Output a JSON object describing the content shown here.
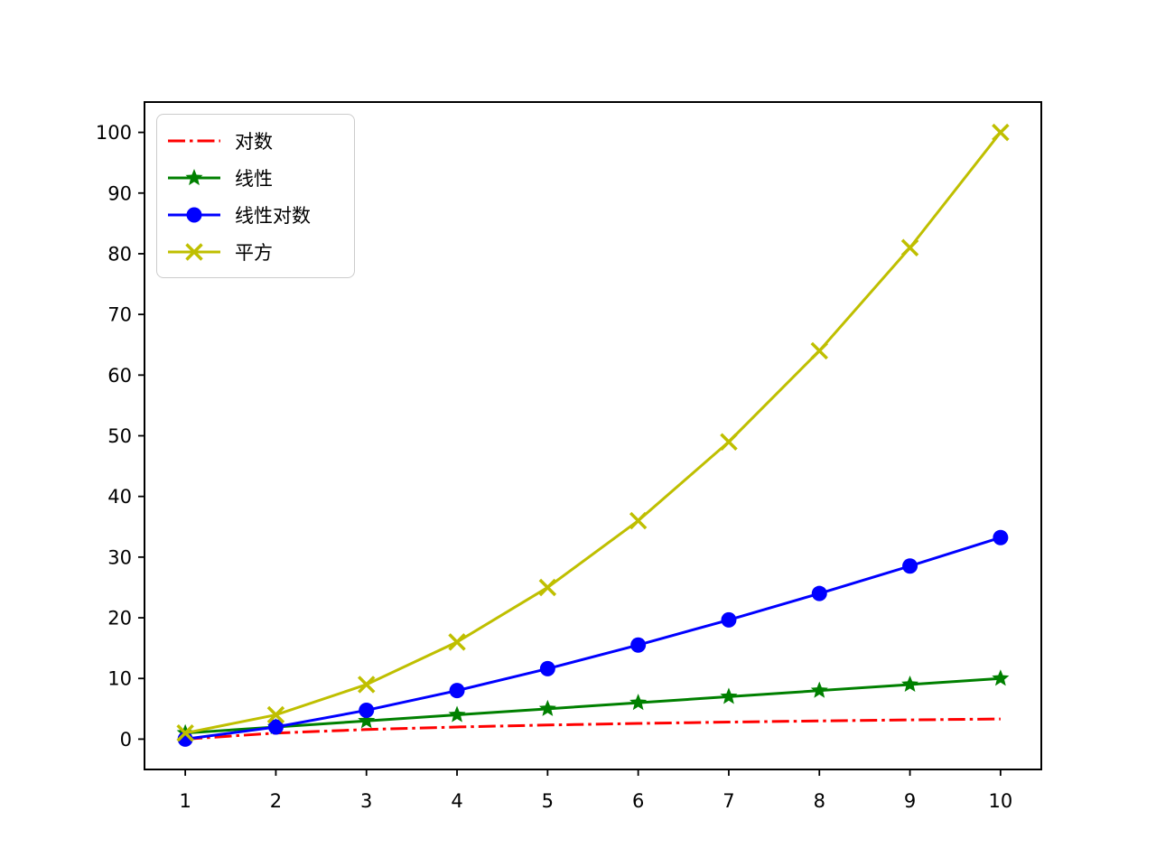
{
  "figure": {
    "background": "#ffffff",
    "axis_color": "#000000"
  },
  "chart_data": {
    "type": "line",
    "title": "",
    "xlabel": "",
    "ylabel": "",
    "grid": false,
    "legend_position": "upper-left",
    "x": [
      1,
      2,
      3,
      4,
      5,
      6,
      7,
      8,
      9,
      10
    ],
    "xlim": [
      0.55,
      10.45
    ],
    "ylim": [
      -5,
      105
    ],
    "xticks": [
      "1",
      "2",
      "3",
      "4",
      "5",
      "6",
      "7",
      "8",
      "9",
      "10"
    ],
    "yticks": [
      "0",
      "10",
      "20",
      "30",
      "40",
      "50",
      "60",
      "70",
      "80",
      "90",
      "100"
    ],
    "series": [
      {
        "name": "对数",
        "color": "#ff0000",
        "linestyle": "dashdot",
        "marker": "none",
        "values": [
          0,
          1,
          1.585,
          2,
          2.322,
          2.585,
          2.807,
          3,
          3.17,
          3.322
        ]
      },
      {
        "name": "线性",
        "color": "#008000",
        "linestyle": "solid",
        "marker": "star",
        "values": [
          1,
          2,
          3,
          4,
          5,
          6,
          7,
          8,
          9,
          10
        ]
      },
      {
        "name": "线性对数",
        "color": "#0000ff",
        "linestyle": "solid",
        "marker": "circle",
        "values": [
          0,
          2,
          4.755,
          8,
          11.61,
          15.51,
          19.651,
          24,
          28.529,
          33.219
        ]
      },
      {
        "name": "平方",
        "color": "#bfbf00",
        "linestyle": "solid",
        "marker": "x",
        "values": [
          1,
          4,
          9,
          16,
          25,
          36,
          49,
          64,
          81,
          100
        ]
      }
    ]
  }
}
